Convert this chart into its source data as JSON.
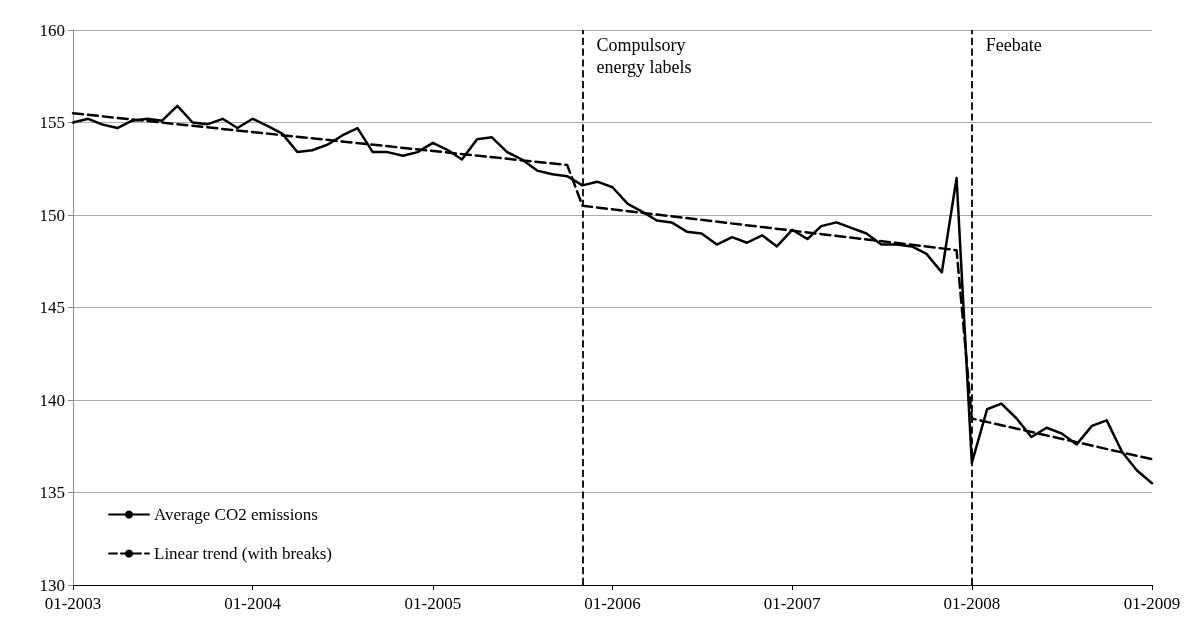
{
  "chart_data": {
    "type": "line",
    "x": [
      "2003-01",
      "2003-02",
      "2003-03",
      "2003-04",
      "2003-05",
      "2003-06",
      "2003-07",
      "2003-08",
      "2003-09",
      "2003-10",
      "2003-11",
      "2003-12",
      "2004-01",
      "2004-02",
      "2004-03",
      "2004-04",
      "2004-05",
      "2004-06",
      "2004-07",
      "2004-08",
      "2004-09",
      "2004-10",
      "2004-11",
      "2004-12",
      "2005-01",
      "2005-02",
      "2005-03",
      "2005-04",
      "2005-05",
      "2005-06",
      "2005-07",
      "2005-08",
      "2005-09",
      "2005-10",
      "2005-11",
      "2005-12",
      "2006-01",
      "2006-02",
      "2006-03",
      "2006-04",
      "2006-05",
      "2006-06",
      "2006-07",
      "2006-08",
      "2006-09",
      "2006-10",
      "2006-11",
      "2006-12",
      "2007-01",
      "2007-02",
      "2007-03",
      "2007-04",
      "2007-05",
      "2007-06",
      "2007-07",
      "2007-08",
      "2007-09",
      "2007-10",
      "2007-11",
      "2007-12",
      "2008-01",
      "2008-02",
      "2008-03",
      "2008-04",
      "2008-05",
      "2008-06",
      "2008-07",
      "2008-08",
      "2008-09",
      "2008-10",
      "2008-11",
      "2008-12",
      "2009-01"
    ],
    "series": [
      {
        "name": "Average CO2 emissions",
        "color": "#000000",
        "line_style": "solid",
        "values": [
          155.0,
          155.2,
          154.9,
          154.7,
          155.1,
          155.2,
          155.1,
          155.9,
          155.0,
          154.9,
          155.2,
          154.7,
          155.2,
          154.8,
          154.4,
          153.4,
          153.5,
          153.8,
          154.3,
          154.7,
          153.4,
          153.4,
          153.2,
          153.4,
          153.9,
          153.5,
          153.0,
          154.1,
          154.2,
          153.4,
          153.0,
          152.4,
          152.2,
          152.1,
          151.6,
          151.8,
          151.5,
          150.6,
          150.2,
          149.7,
          149.6,
          149.1,
          149.0,
          148.4,
          148.8,
          148.5,
          148.9,
          148.3,
          149.2,
          148.7,
          149.4,
          149.6,
          149.3,
          149.0,
          148.4,
          148.4,
          148.3,
          147.9,
          146.9,
          152.0,
          136.6,
          139.5,
          139.8,
          139.0,
          138.0,
          138.5,
          138.2,
          137.6,
          138.6,
          138.9,
          137.2,
          136.2,
          135.5
        ]
      },
      {
        "name": "Linear trend (with breaks)",
        "color": "#000000",
        "line_style": "dashed",
        "x": [
          "2003-01",
          "2005-10",
          "2005-11",
          "2007-12",
          "2008-01",
          "2009-01"
        ],
        "values": [
          155.5,
          152.7,
          150.5,
          148.1,
          139.0,
          136.8
        ]
      }
    ],
    "xlim": [
      "2003-01",
      "2009-01"
    ],
    "xticks": [
      {
        "value": "2003-01",
        "label": "01-2003"
      },
      {
        "value": "2004-01",
        "label": "01-2004"
      },
      {
        "value": "2005-01",
        "label": "01-2005"
      },
      {
        "value": "2006-01",
        "label": "01-2006"
      },
      {
        "value": "2007-01",
        "label": "01-2007"
      },
      {
        "value": "2008-01",
        "label": "01-2008"
      },
      {
        "value": "2009-01",
        "label": "01-2009"
      }
    ],
    "ylim": [
      130,
      160
    ],
    "yticks": [
      130,
      135,
      140,
      145,
      150,
      155,
      160
    ],
    "grid": "y",
    "legend": "bottom left",
    "marker": "none",
    "ref_lines": [
      {
        "axis": "x",
        "value": "2005-11",
        "label": "Compulsory energy labels",
        "line_style": "dashed",
        "color": "#000000"
      },
      {
        "axis": "x",
        "value": "2008-01",
        "label": "Feebate",
        "line_style": "dashed",
        "color": "#000000"
      }
    ]
  }
}
